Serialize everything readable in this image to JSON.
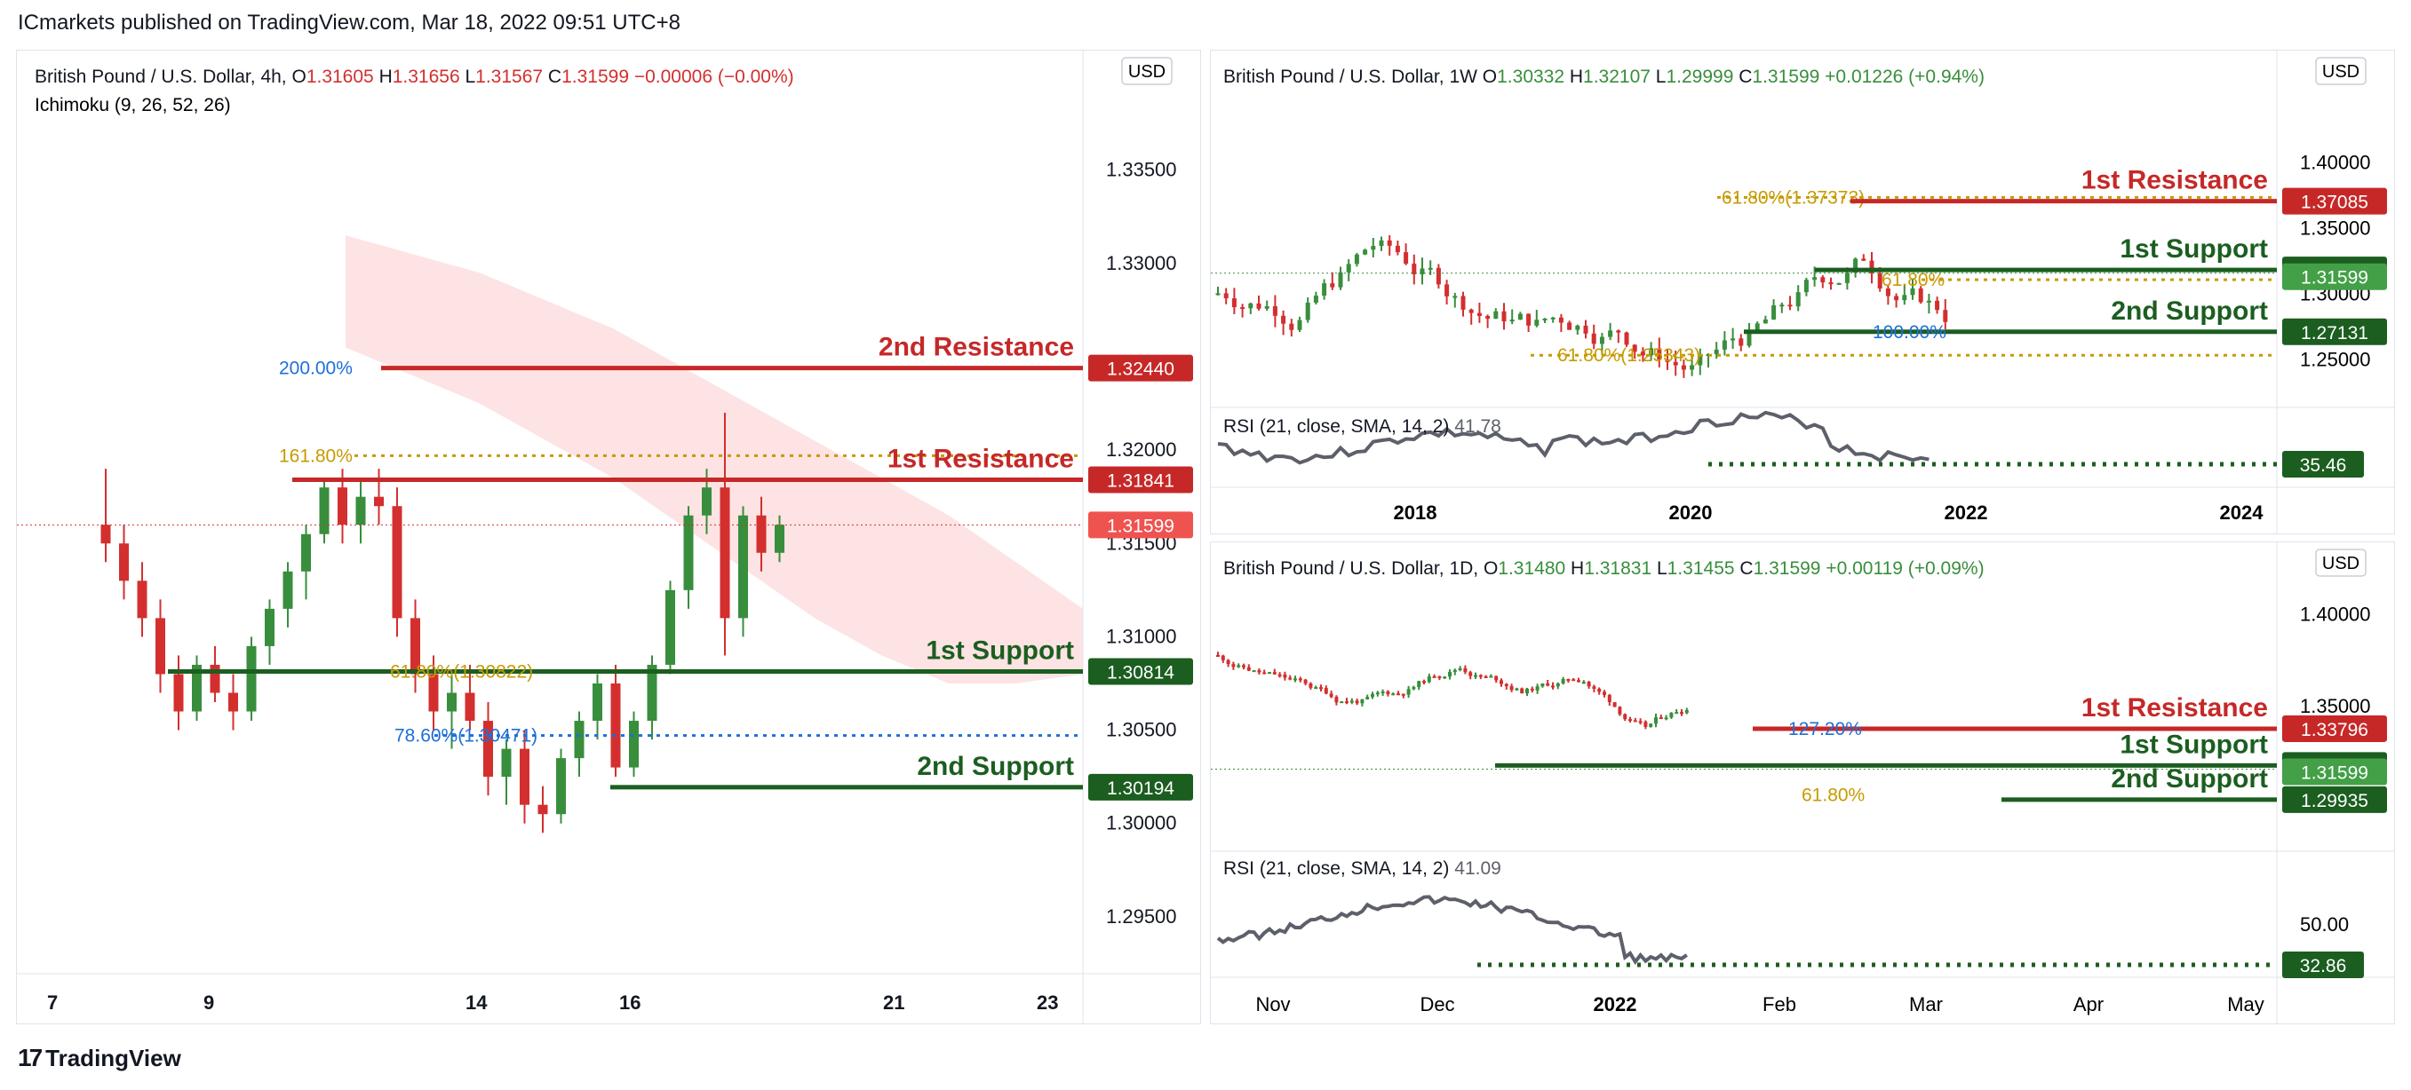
{
  "header": {
    "text": "ICmarkets published on TradingView.com, Mar 18, 2022 09:51 UTC+8"
  },
  "footer": {
    "brand": "TradingView"
  },
  "colors": {
    "up": "#388e3c",
    "down": "#d32f2f",
    "resistance": "#c62828",
    "support": "#1b5e20",
    "fib_gold": "#c79a00",
    "fib_blue": "#1e6fd9",
    "cloud": "#fde0e0",
    "rsi": "#5d606b"
  },
  "chart_data": [
    {
      "type": "candlestick",
      "symbol": "British Pound / U.S. Dollar, 4h,",
      "indicator": "Ichimoku (9, 26, 52, 26)",
      "ohlc_label": {
        "o": "1.31605",
        "h": "1.31656",
        "l": "1.31567",
        "c": "1.31599",
        "chg": "−0.00006 (−0.00%)"
      },
      "currency": "USD",
      "ylim": [
        1.291,
        1.3395
      ],
      "y_ticks": [
        "1.33500",
        "1.33000",
        "1.32000",
        "1.31500",
        "1.31000",
        "1.30500",
        "1.30000",
        "1.29500"
      ],
      "x_ticks": [
        "7",
        "9",
        "14",
        "16",
        "21",
        "23"
      ],
      "candles": [
        [
          1.316,
          1.319,
          1.314,
          1.315
        ],
        [
          1.315,
          1.316,
          1.312,
          1.313
        ],
        [
          1.313,
          1.314,
          1.31,
          1.311
        ],
        [
          1.311,
          1.312,
          1.307,
          1.308
        ],
        [
          1.308,
          1.309,
          1.305,
          1.306
        ],
        [
          1.306,
          1.309,
          1.3055,
          1.3085
        ],
        [
          1.3085,
          1.3095,
          1.3065,
          1.307
        ],
        [
          1.307,
          1.308,
          1.305,
          1.306
        ],
        [
          1.306,
          1.31,
          1.3055,
          1.3095
        ],
        [
          1.3095,
          1.312,
          1.3085,
          1.3115
        ],
        [
          1.3115,
          1.314,
          1.3105,
          1.3135
        ],
        [
          1.3135,
          1.316,
          1.312,
          1.3155
        ],
        [
          1.3155,
          1.3185,
          1.315,
          1.318
        ],
        [
          1.318,
          1.319,
          1.315,
          1.316
        ],
        [
          1.316,
          1.3185,
          1.315,
          1.3175
        ],
        [
          1.3175,
          1.319,
          1.316,
          1.317
        ],
        [
          1.317,
          1.318,
          1.31,
          1.311
        ],
        [
          1.311,
          1.312,
          1.307,
          1.308
        ],
        [
          1.308,
          1.309,
          1.305,
          1.306
        ],
        [
          1.306,
          1.308,
          1.304,
          1.307
        ],
        [
          1.307,
          1.3085,
          1.305,
          1.3055
        ],
        [
          1.3055,
          1.3065,
          1.3015,
          1.3025
        ],
        [
          1.3025,
          1.3045,
          1.301,
          1.304
        ],
        [
          1.304,
          1.305,
          1.3,
          1.301
        ],
        [
          1.301,
          1.302,
          1.2995,
          1.3005
        ],
        [
          1.3005,
          1.304,
          1.3,
          1.3035
        ],
        [
          1.3035,
          1.306,
          1.3025,
          1.3055
        ],
        [
          1.3055,
          1.308,
          1.3045,
          1.3075
        ],
        [
          1.3075,
          1.3085,
          1.3025,
          1.303
        ],
        [
          1.303,
          1.306,
          1.3025,
          1.3055
        ],
        [
          1.3055,
          1.309,
          1.3045,
          1.3085
        ],
        [
          1.3085,
          1.313,
          1.308,
          1.3125
        ],
        [
          1.3125,
          1.317,
          1.3115,
          1.3165
        ],
        [
          1.3165,
          1.319,
          1.3155,
          1.318
        ],
        [
          1.318,
          1.322,
          1.309,
          1.311
        ],
        [
          1.311,
          1.317,
          1.31,
          1.3165
        ],
        [
          1.3165,
          1.3175,
          1.3135,
          1.3145
        ],
        [
          1.3145,
          1.3165,
          1.314,
          1.316
        ]
      ],
      "ichimoku_cloud": {
        "top": [
          1.3315,
          1.3305,
          1.3295,
          1.328,
          1.3265,
          1.3245,
          1.3225,
          1.3205,
          1.3185,
          1.3165,
          1.314,
          1.3115
        ],
        "bottom": [
          1.3255,
          1.324,
          1.3225,
          1.3205,
          1.3185,
          1.316,
          1.3135,
          1.311,
          1.309,
          1.3075,
          1.3075,
          1.308
        ]
      },
      "levels": [
        {
          "label": "2nd Resistance",
          "value": 1.3244,
          "price": "1.32440",
          "kind": "resistance",
          "fib": "200.00%"
        },
        {
          "label": "1st Resistance",
          "value": 1.31841,
          "price": "1.31841",
          "kind": "resistance",
          "fib": "161.80%"
        },
        {
          "label": "1st Support",
          "value": 1.30814,
          "price": "1.30814",
          "kind": "support",
          "fib": "61.80%(1.30822)"
        },
        {
          "label": "2nd Support",
          "value": 1.30194,
          "price": "1.30194",
          "kind": "support",
          "fib": "78.60%(1.30471)"
        }
      ],
      "fib_lines": [
        {
          "label": "161.80%",
          "value": 1.3197,
          "color": "gold"
        },
        {
          "label": "78.60%(1.30471)",
          "value": 1.30471,
          "color": "blue"
        }
      ],
      "last_price": "1.31599"
    },
    {
      "type": "candlestick",
      "symbol": "British Pound / U.S. Dollar, 1W",
      "ohlc_label": {
        "o": "1.30332",
        "h": "1.32107",
        "l": "1.29999",
        "c": "1.31599",
        "chg": "+0.01226 (+0.94%)"
      },
      "currency": "USD",
      "ylim": [
        1.215,
        1.445
      ],
      "y_ticks": [
        "1.40000",
        "1.35000",
        "1.30000",
        "1.25000"
      ],
      "x_ticks": [
        "2018",
        "2020",
        "2022",
        "2024"
      ],
      "levels": [
        {
          "label": "1st Resistance",
          "value": 1.37085,
          "price": "1.37085",
          "kind": "resistance",
          "fib": "61.80%(1.37373)"
        },
        {
          "label": "1st Support",
          "value": 1.31845,
          "price": "1.31845",
          "kind": "support",
          "fib": "61.80%"
        },
        {
          "label": "2nd Support",
          "value": 1.27131,
          "price": "1.27131",
          "kind": "support",
          "fib": "100.00%"
        }
      ],
      "fib_extra": "61.80%(1.25343)",
      "last_price": "1.31599",
      "rsi": {
        "label": "RSI (21, close, SMA, 14, 2)",
        "value": "41.78",
        "level": "35.46"
      }
    },
    {
      "type": "candlestick",
      "symbol": "British Pound / U.S. Dollar, 1D,",
      "ohlc_label": {
        "o": "1.31480",
        "h": "1.31831",
        "l": "1.31455",
        "c": "1.31599",
        "chg": "+0.00119 (+0.09%)"
      },
      "currency": "USD",
      "ylim": [
        1.28,
        1.42
      ],
      "y_ticks": [
        "1.40000",
        "1.35000"
      ],
      "x_ticks": [
        "Nov",
        "Dec",
        "2022",
        "Feb",
        "Mar",
        "Apr",
        "May"
      ],
      "levels": [
        {
          "label": "1st Resistance",
          "value": 1.33796,
          "price": "1.33796",
          "kind": "resistance",
          "fib": "127.20%"
        },
        {
          "label": "1st Support",
          "value": 1.31796,
          "price": "1.31796",
          "kind": "support",
          "fib": "61.80%"
        },
        {
          "label": "2nd Support",
          "value": 1.29935,
          "price": "1.29935",
          "kind": "support",
          "fib": ""
        }
      ],
      "last_price": "1.31599",
      "rsi": {
        "label": "RSI (21, close, SMA, 14, 2)",
        "value": "41.09",
        "axis_tick": "50.00",
        "level": "32.86"
      }
    }
  ]
}
